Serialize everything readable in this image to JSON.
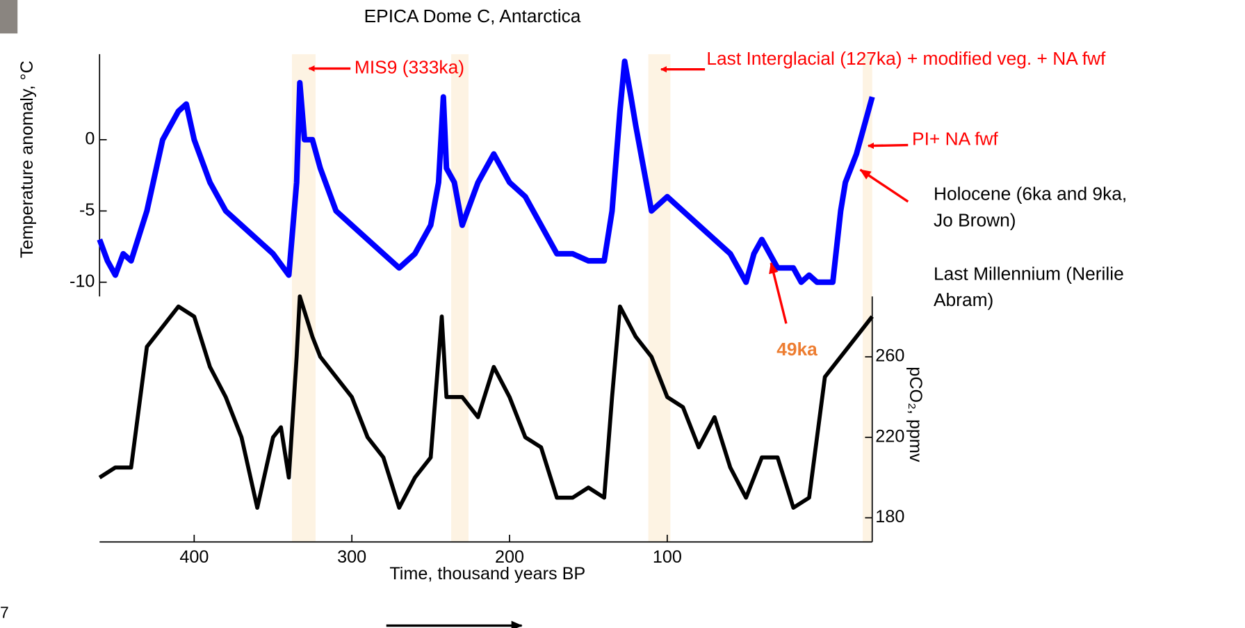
{
  "chart_data": {
    "type": "line",
    "title": "EPICA Dome C, Antarctica",
    "x_label": "Time, thousand years BP",
    "y_label": "Temperature anomaly, °C",
    "y2_label": "pCO₂, ppmv",
    "xlim": [
      460,
      -30
    ],
    "xticks": [
      400,
      300,
      200,
      100
    ],
    "ylim": [
      -11,
      6
    ],
    "yticks": [
      0,
      -5,
      -10
    ],
    "y2lim": [
      168,
      290
    ],
    "y2ticks": [
      180,
      220,
      260
    ],
    "highlight_color": "#fdf3e3",
    "highlights": [
      [
        338,
        323
      ],
      [
        237,
        226
      ],
      [
        112,
        98
      ],
      [
        -24,
        -30
      ]
    ],
    "series": [
      {
        "color": "#0000ff",
        "x": [
          460,
          455,
          450,
          445,
          440,
          430,
          420,
          410,
          405,
          400,
          390,
          380,
          370,
          360,
          350,
          340,
          335,
          333,
          330,
          325,
          320,
          310,
          300,
          290,
          280,
          270,
          260,
          250,
          245,
          242,
          240,
          235,
          230,
          220,
          210,
          200,
          190,
          180,
          170,
          160,
          150,
          140,
          135,
          130,
          127,
          123,
          120,
          115,
          110,
          100,
          90,
          80,
          70,
          60,
          55,
          50,
          45,
          40,
          35,
          30,
          25,
          20,
          15,
          10,
          5,
          -5,
          -10,
          -13,
          -20,
          -25,
          -30
        ],
        "values": [
          -7,
          -8.5,
          -9.5,
          -8,
          -8.5,
          -5,
          0,
          2,
          2.5,
          0,
          -3,
          -5,
          -6,
          -7,
          -8,
          -9.5,
          -3,
          4,
          0,
          0,
          -2,
          -5,
          -6,
          -7,
          -8,
          -9,
          -8,
          -6,
          -3,
          3,
          -2,
          -3,
          -6,
          -3,
          -1,
          -3,
          -4,
          -6,
          -8,
          -8,
          -8.5,
          -8.5,
          -5,
          2,
          5.5,
          3,
          1,
          -2,
          -5,
          -4,
          -5,
          -6,
          -7,
          -8,
          -9,
          -10,
          -8,
          -7,
          -8,
          -9,
          -9,
          -9,
          -10,
          -9.5,
          -10,
          -10,
          -5,
          -3,
          -1,
          1,
          3
        ]
      },
      {
        "color": "#000000",
        "axis": "y2",
        "x": [
          460,
          450,
          440,
          430,
          420,
          410,
          400,
          390,
          380,
          370,
          360,
          350,
          345,
          340,
          335,
          333,
          325,
          320,
          310,
          300,
          290,
          280,
          270,
          260,
          250,
          243,
          240,
          230,
          220,
          210,
          200,
          190,
          180,
          170,
          160,
          150,
          140,
          135,
          130,
          120,
          110,
          100,
          90,
          80,
          70,
          60,
          50,
          40,
          30,
          20,
          10,
          0,
          -10,
          -20,
          -30
        ],
        "values": [
          200,
          205,
          205,
          265,
          275,
          285,
          280,
          255,
          240,
          220,
          185,
          220,
          225,
          200,
          260,
          290,
          270,
          260,
          250,
          240,
          220,
          210,
          185,
          200,
          210,
          280,
          240,
          240,
          230,
          255,
          240,
          220,
          215,
          190,
          190,
          195,
          190,
          240,
          285,
          270,
          260,
          240,
          235,
          215,
          230,
          205,
          190,
          210,
          210,
          185,
          190,
          250,
          260,
          270,
          280
        ]
      }
    ],
    "annotations": [
      {
        "text": "MIS9 (333ka)",
        "color": "#ff0000"
      },
      {
        "text": "Last Interglacial (127ka) + modified veg. + NA fwf",
        "color": "#ff0000"
      },
      {
        "text": "PI+ NA fwf",
        "color": "#ff0000"
      },
      {
        "lines": [
          "Holocene (6ka and 9ka,",
          "Jo Brown)"
        ],
        "color": "#000000"
      },
      {
        "lines": [
          "Last Millennium (Nerilie",
          "Abram)"
        ],
        "color": "#000000"
      },
      {
        "text": "49ka",
        "color": "#ed7d31"
      }
    ]
  },
  "slide_number": "7"
}
